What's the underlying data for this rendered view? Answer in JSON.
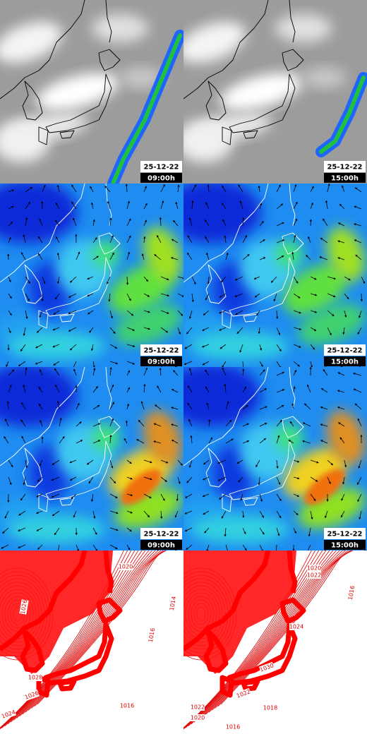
{
  "rows": [
    {
      "panels": [
        {
          "date": "25-12-22",
          "time": "09:00h"
        },
        {
          "date": "25-12-22",
          "time": "15:00h"
        }
      ]
    },
    {
      "panels": [
        {
          "date": "25-12-22",
          "time": "09:00h"
        },
        {
          "date": "25-12-22",
          "time": "15:00h"
        }
      ]
    },
    {
      "panels": [
        {
          "date": "25-12-22",
          "time": "09:00h"
        },
        {
          "date": "25-12-22",
          "time": "15:00h"
        }
      ]
    },
    {
      "panels": [
        {
          "isobar_labels": [
            "1020",
            "1026",
            "1014",
            "1016",
            "1028",
            "1026",
            "1024",
            "1016"
          ]
        },
        {
          "isobar_labels": [
            "1020",
            "1022",
            "1024",
            "1016",
            "1030",
            "1022",
            "1022",
            "1020",
            "1018",
            "1016"
          ]
        }
      ]
    }
  ]
}
